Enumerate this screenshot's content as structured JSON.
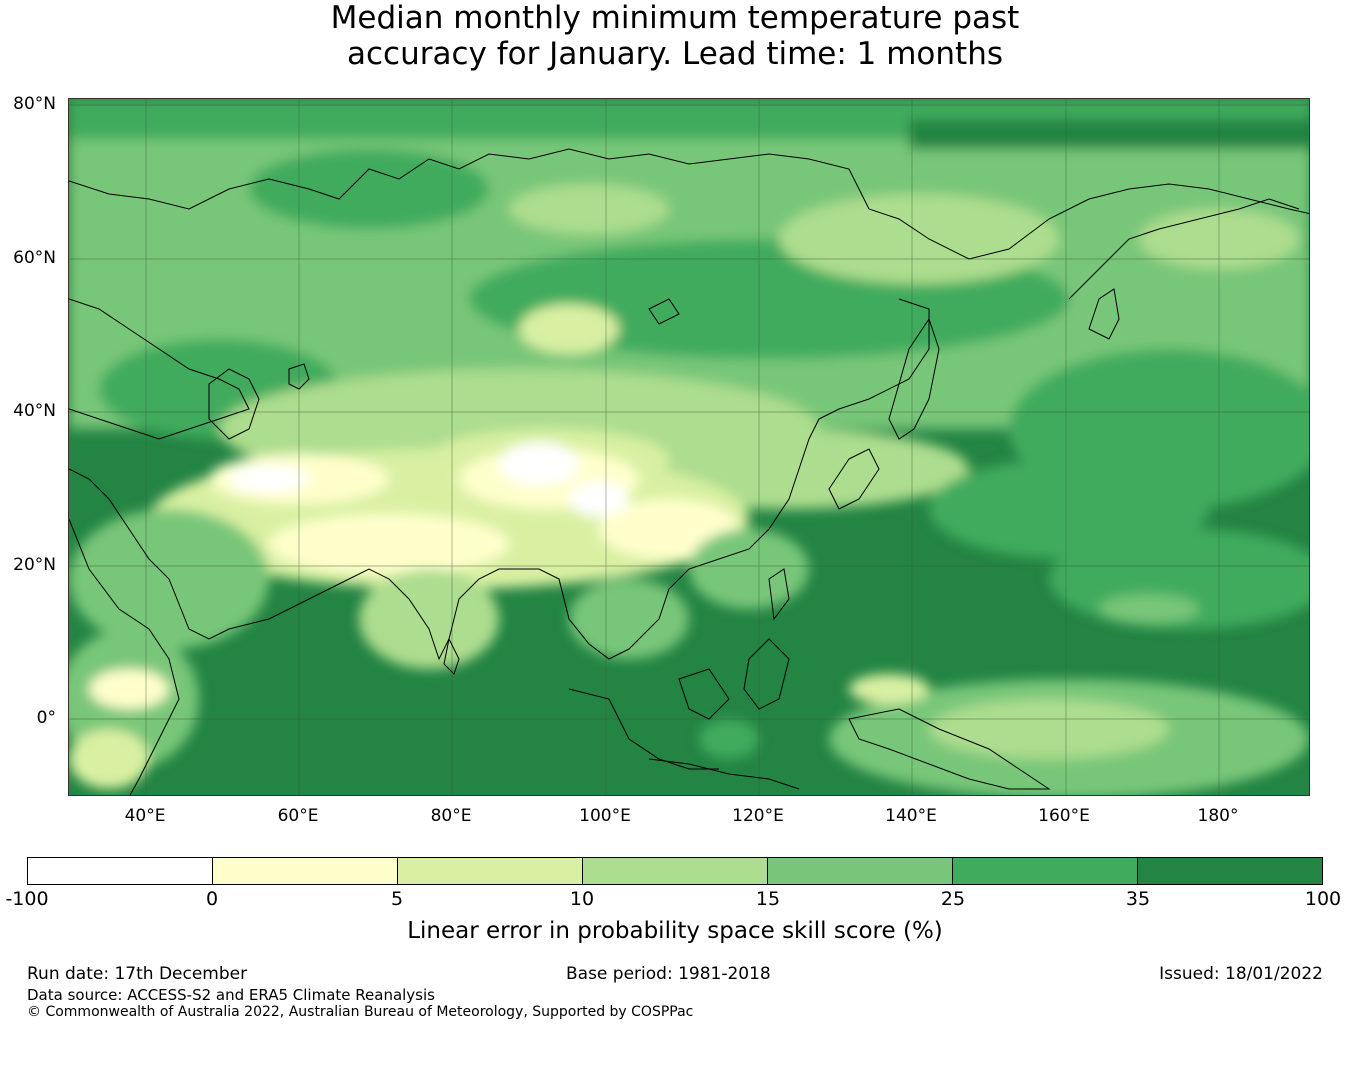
{
  "title": {
    "line1": "Median monthly minimum temperature past",
    "line2": "accuracy for January. Lead time: 1 months"
  },
  "map": {
    "lat_labels": [
      "80°N",
      "60°N",
      "40°N",
      "20°N",
      "0°"
    ],
    "lon_labels": [
      "40°E",
      "60°E",
      "80°E",
      "100°E",
      "120°E",
      "140°E",
      "160°E",
      "180°"
    ],
    "extent": {
      "lon_min": 30,
      "lon_max": 192,
      "lat_min": -10,
      "lat_max": 81
    }
  },
  "colorbar": {
    "ticks": [
      "-100",
      "0",
      "5",
      "10",
      "15",
      "25",
      "35",
      "100"
    ],
    "colors": [
      "#ffffff",
      "#ffffcc",
      "#d9f0a3",
      "#addd8e",
      "#78c679",
      "#41ab5d",
      "#238443"
    ],
    "label": "Linear error in probability space skill score (%)"
  },
  "footer": {
    "run_date": "Run date: 17th December",
    "base_period": "Base period: 1981-2018",
    "issued": "Issued: 18/01/2022",
    "data_source": "Data source: ACCESS-S2 and ERA5 Climate Reanalysis",
    "copyright": "© Commonwealth of Australia 2022, Australian Bureau of Meteorology, Supported by COSPPac"
  }
}
